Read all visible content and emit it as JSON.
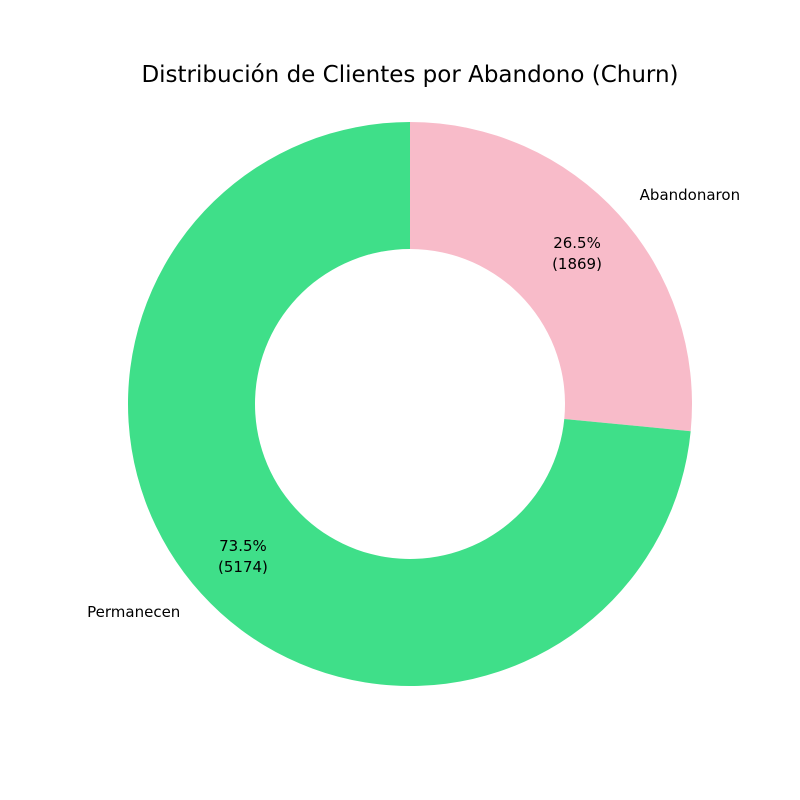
{
  "chart_data": {
    "type": "pie",
    "variant": "donut",
    "title": "Distribución de Clientes por Abandono (Churn)",
    "legend": "none",
    "slices": [
      {
        "label": "Abandonaron",
        "value": 1869,
        "percent_label": "26.5%",
        "count_label": "(1869)",
        "color": "#f8bbc9"
      },
      {
        "label": "Permanecen",
        "value": 5174,
        "percent_label": "73.5%",
        "count_label": "(5174)",
        "color": "#3fdf89"
      }
    ]
  }
}
